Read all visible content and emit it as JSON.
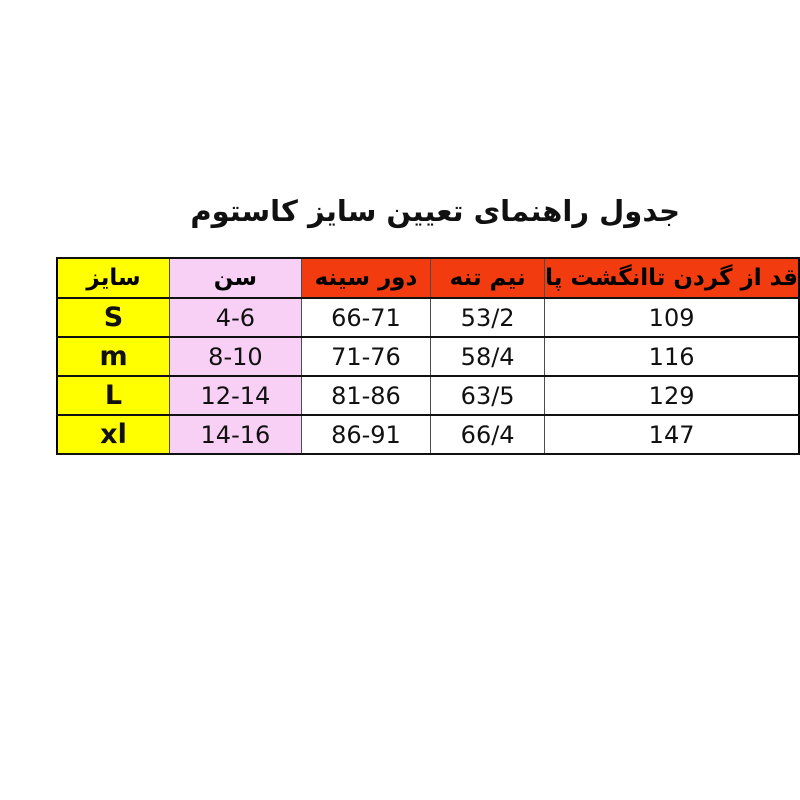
{
  "title": "جدول راهنمای تعیین سایز کاستوم",
  "colors": {
    "page_background": "#ffffff",
    "header_red": "#f23c10",
    "size_column_yellow": "#ffff00",
    "age_column_pink": "#f9d0f5",
    "data_cell_white": "#ffffff",
    "text_black": "#000000",
    "border_dark": "#111111",
    "border_gray": "#4d4d4d"
  },
  "chart_data": {
    "type": "table",
    "title": "جدول راهنمای تعیین سایز کاستوم",
    "columns": [
      "سایز",
      "سن",
      "دور سینه",
      "نیم تنه",
      "قد از گردن تاانگشت پا"
    ],
    "rows": [
      [
        "S",
        "4-6",
        "66-71",
        "53/2",
        "109"
      ],
      [
        "m",
        "8-10",
        "71-76",
        "58/4",
        "116"
      ],
      [
        "L",
        "12-14",
        "81-86",
        "63/5",
        "129"
      ],
      [
        "xl",
        "14-16",
        "86-91",
        "66/4",
        "147"
      ]
    ],
    "column_header_colors": [
      "#ffff00",
      "#f9d0f5",
      "#f23c10",
      "#f23c10",
      "#f23c10"
    ],
    "column_cell_colors": [
      "#ffff00",
      "#f9d0f5",
      "#ffffff",
      "#ffffff",
      "#ffffff"
    ],
    "layout": {
      "direction": "rtl-content",
      "grid": "on",
      "title_position": "top-center-above-table"
    }
  }
}
